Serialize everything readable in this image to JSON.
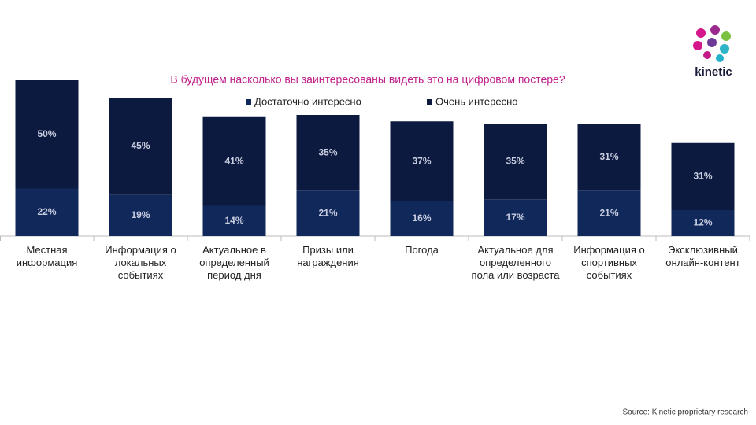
{
  "chart_data": {
    "type": "stacked_bar",
    "title": "В будущем насколько вы заинтересованы видеть это на цифровом постере?",
    "categories": [
      "Местная информация",
      "Информация о локальных событиях",
      "Актуальное в определенный период дня",
      "Призы или награждения",
      "Погода",
      "Актуальное для определенного пола или возраста",
      "Информация о спортивных событиях",
      "Эксклюзивный онлайн-контент"
    ],
    "series": [
      {
        "name": "Достаточно интересно",
        "color": "#10295a",
        "values": [
          22,
          19,
          14,
          21,
          16,
          17,
          21,
          12
        ],
        "value_labels": [
          "22%",
          "19%",
          "14%",
          "21%",
          "16%",
          "17%",
          "21%",
          "12%"
        ]
      },
      {
        "name": "Очень интересно",
        "color": "#0c1a3f",
        "values": [
          50,
          45,
          41,
          35,
          37,
          35,
          31,
          31
        ],
        "value_labels": [
          "50%",
          "45%",
          "41%",
          "35%",
          "37%",
          "35%",
          "31%",
          "31%"
        ]
      }
    ],
    "logo": "kinetic",
    "source": "Source: Kinetic proprietary research"
  }
}
